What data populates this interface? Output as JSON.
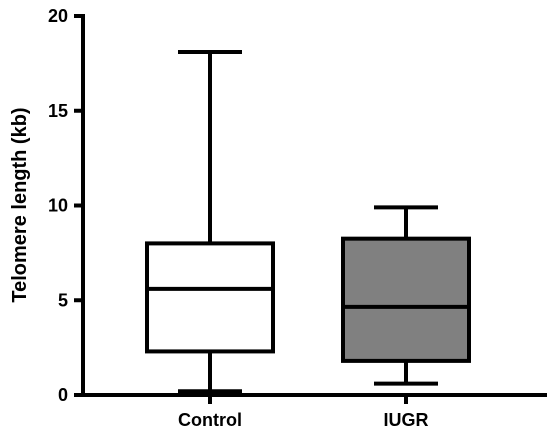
{
  "chart_data": {
    "type": "box",
    "ylabel": "Telomere length (kb)",
    "xlabel": "",
    "ylim": [
      0,
      20
    ],
    "yticks": [
      0,
      5,
      10,
      15,
      20
    ],
    "categories": [
      "Control",
      "IUGR"
    ],
    "boxes": [
      {
        "name": "Control",
        "min": 0.2,
        "q1": 2.3,
        "median": 5.6,
        "q3": 8.0,
        "max": 18.1,
        "fill": "#ffffff"
      },
      {
        "name": "IUGR",
        "min": 0.6,
        "q1": 1.8,
        "median": 4.65,
        "q3": 8.25,
        "max": 9.9,
        "fill": "#808080"
      }
    ],
    "grid": false,
    "legend": "none"
  }
}
